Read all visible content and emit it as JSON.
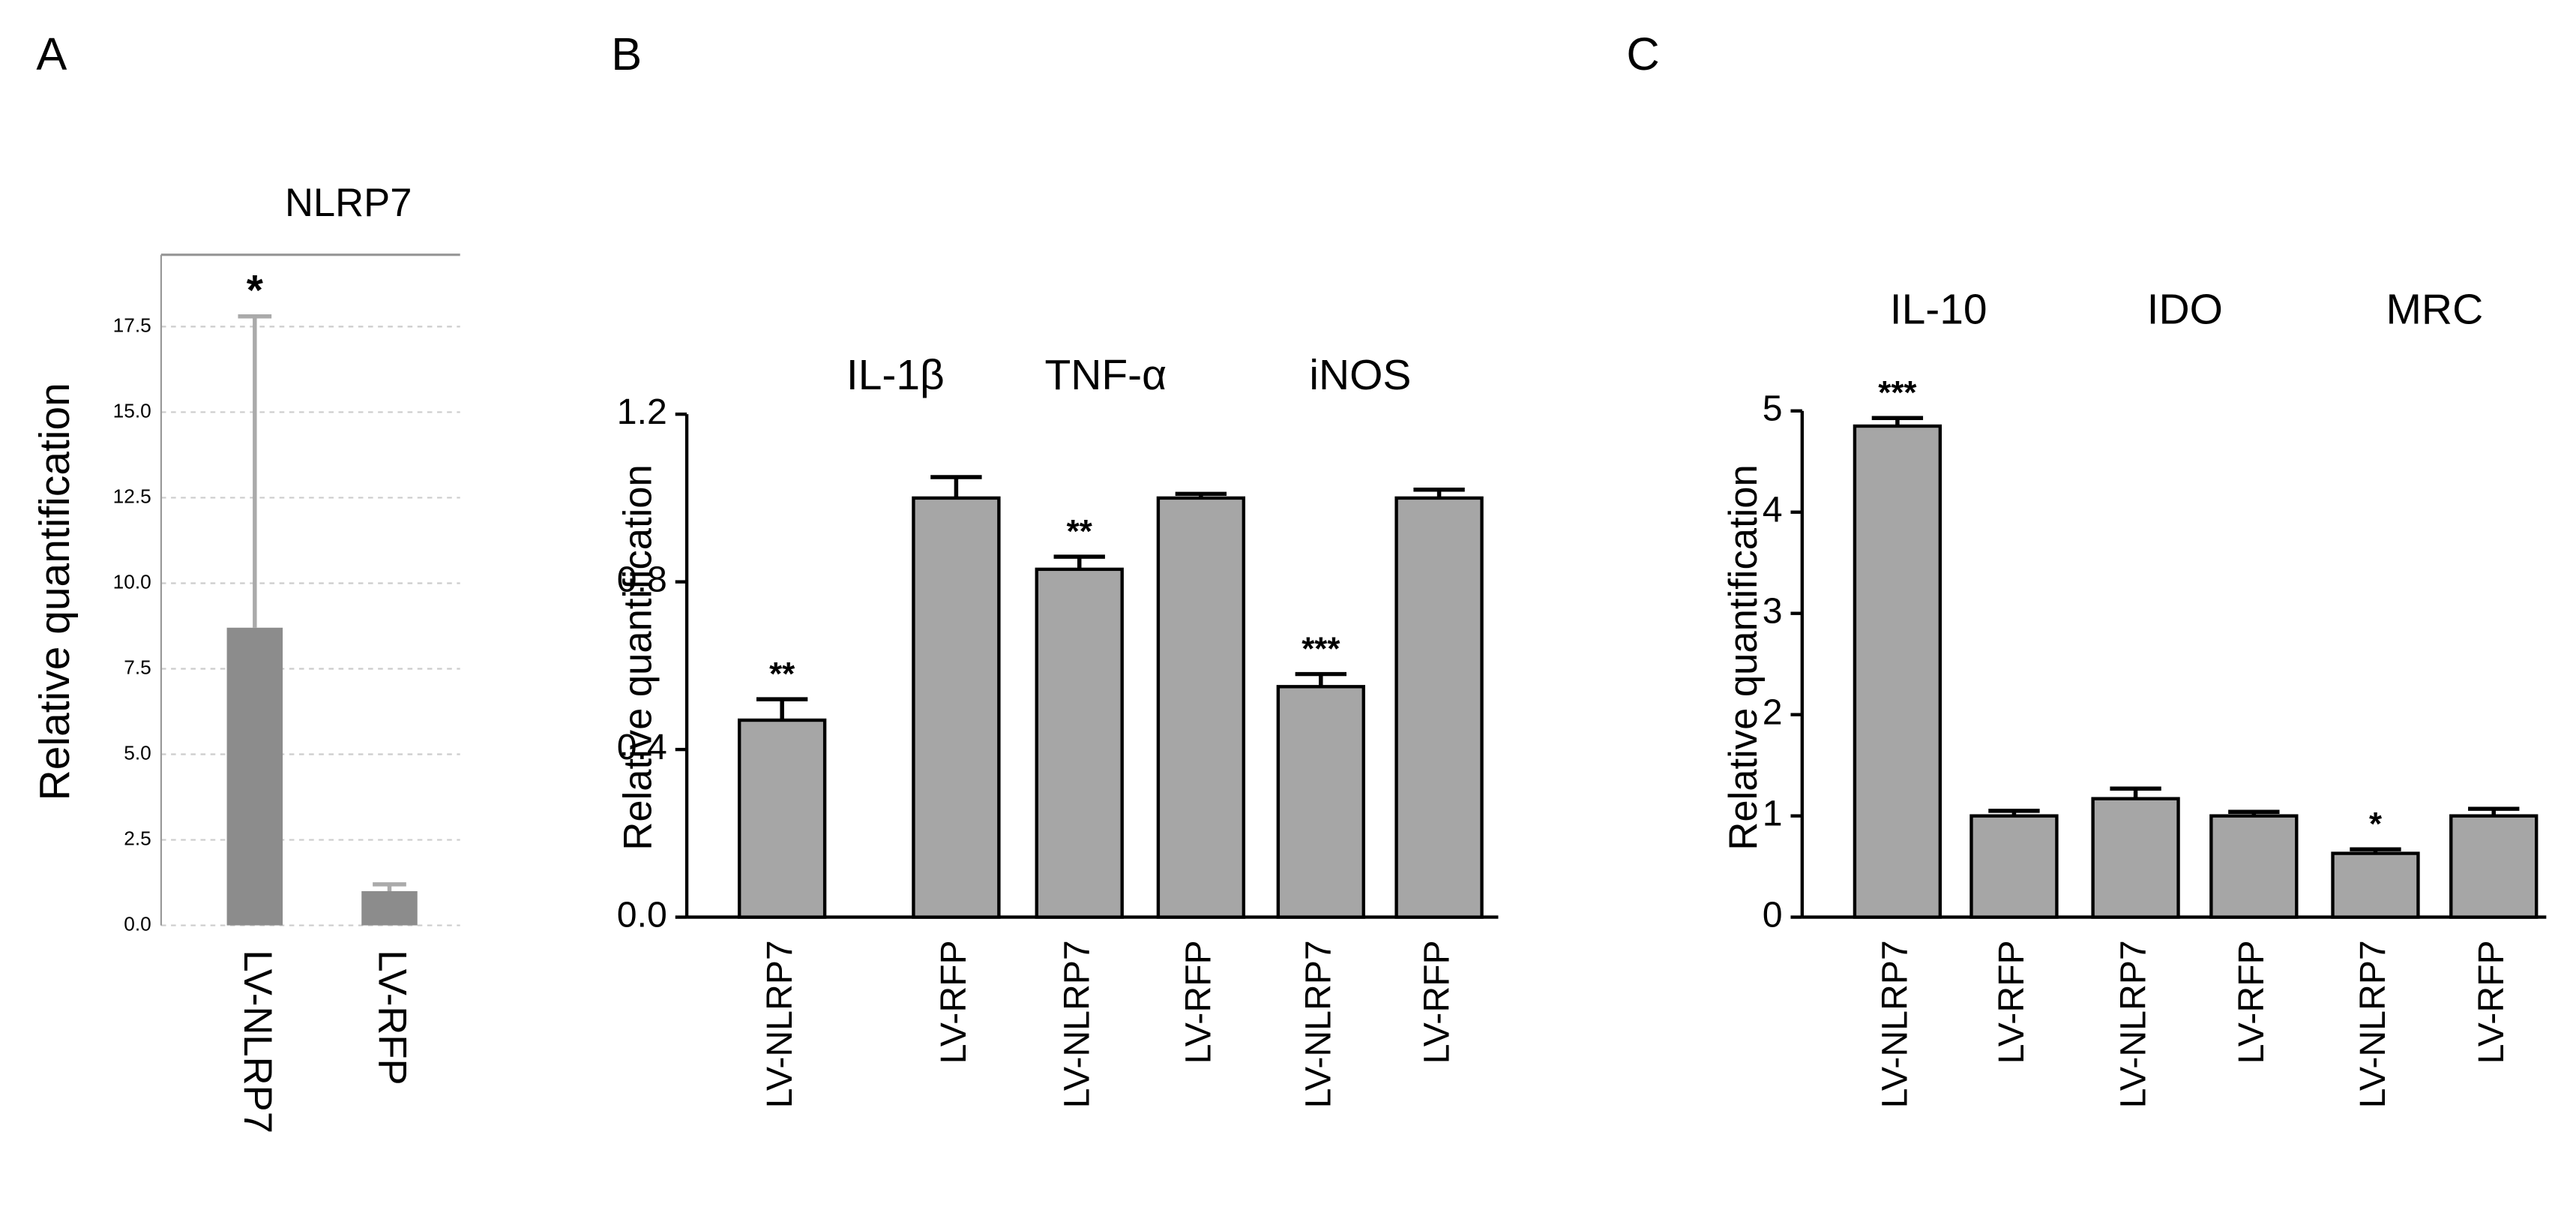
{
  "chart_data": [
    {
      "type": "bar",
      "panel": "A",
      "title": "NLRP7",
      "y_label": "Relative quantification",
      "categories": [
        "LV-NLRP7",
        "LV-RFP"
      ],
      "values": [
        8.7,
        1.0
      ],
      "errors": [
        9.1,
        0.2
      ],
      "annotations": [
        "*",
        null
      ],
      "color": "#8c8c8c",
      "grid": true,
      "ylim": [
        0,
        19.6
      ],
      "yticks": [
        {
          "value": 0,
          "label": "0.0"
        },
        2.5,
        {
          "value": 5,
          "label": "5.0"
        },
        7.5,
        {
          "value": 10,
          "label": "10.0"
        },
        12.5,
        {
          "value": 15,
          "label": "15.0"
        },
        17.5
      ]
    },
    {
      "type": "bar",
      "panel": "B",
      "y_label": "Relative quantification",
      "groups": [
        "IL-1β",
        "TNF-α",
        "iNOS"
      ],
      "categories": [
        "LV-NLRP7",
        "LV-RFP",
        "LV-NLRP7",
        "LV-RFP",
        "LV-NLRP7",
        "LV-RFP"
      ],
      "values": [
        0.47,
        1.0,
        0.83,
        1.0,
        0.55,
        1.0
      ],
      "errors": [
        0.05,
        0.05,
        0.03,
        0.01,
        0.03,
        0.02
      ],
      "annotations": [
        "**",
        null,
        "**",
        null,
        "***",
        null
      ],
      "color": "#a6a6a6",
      "grid": false,
      "ylim": [
        0,
        1.2
      ],
      "yticks": [
        {
          "value": 0,
          "label": "0.0"
        },
        0.4,
        0.8,
        1.2
      ]
    },
    {
      "type": "bar",
      "panel": "C",
      "y_label": "Relative quantification",
      "groups": [
        "IL-10",
        "IDO",
        "MRC"
      ],
      "categories": [
        "LV-NLRP7",
        "LV-RFP",
        "LV-NLRP7",
        "LV-RFP",
        "LV-NLRP7",
        "LV-RFP"
      ],
      "values": [
        4.85,
        1.0,
        1.17,
        1.0,
        0.63,
        1.0
      ],
      "errors": [
        0.08,
        0.05,
        0.1,
        0.04,
        0.04,
        0.07
      ],
      "annotations": [
        "***",
        null,
        null,
        null,
        "*",
        null
      ],
      "color": "#a6a6a6",
      "grid": false,
      "ylim": [
        0,
        5
      ],
      "yticks": [
        0,
        1,
        2,
        3,
        4,
        5
      ]
    }
  ]
}
